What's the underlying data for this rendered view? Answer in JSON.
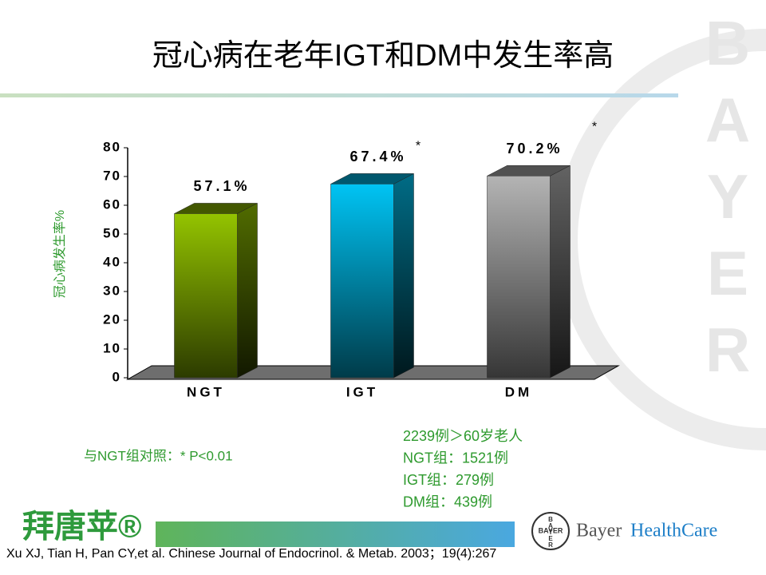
{
  "chart_data": {
    "type": "bar",
    "title": "冠心病在老年IGT和DM中发生率高",
    "y_label": "冠心病发生率%",
    "categories": [
      "NGT",
      "IGT",
      "DM"
    ],
    "values": [
      57.1,
      67.4,
      70.2
    ],
    "value_labels": [
      "57.1%",
      "67.4%",
      "70.2%"
    ],
    "markers": [
      null,
      "*",
      "*"
    ],
    "colors": [
      "#94c400",
      "#00c4f4",
      "#b4b4b4"
    ],
    "ylim": [
      0,
      80
    ],
    "yticks": [
      0,
      10,
      20,
      30,
      40,
      50,
      60,
      70,
      80
    ]
  },
  "comparison_note": "与NGT组对照：* P<0.01",
  "sample_notes": [
    "2239例＞60岁老人",
    "NGT组：1521例",
    "IGT组：279例",
    "DM组：439例"
  ],
  "product_logo": "拜唐苹®",
  "brand": [
    "Bayer",
    "HealthCare"
  ],
  "logo_cross": "BAYER",
  "watermark": "BAYER",
  "citation": "Xu XJ, Tian H, Pan  CY,et al. Chinese Journal of Endocrinol. & Metab. 2003；19(4):267"
}
